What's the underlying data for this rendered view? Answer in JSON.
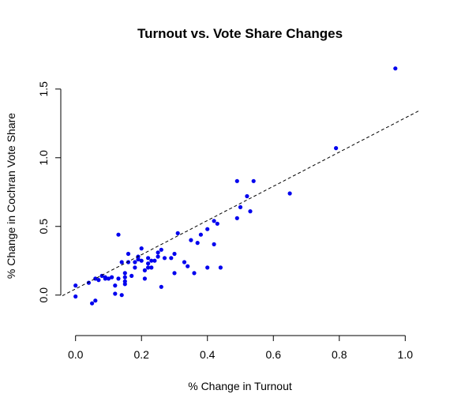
{
  "chart_data": {
    "type": "scatter",
    "title": "Turnout vs. Vote Share Changes",
    "xlabel": "% Change in Turnout",
    "ylabel": "% Change in Cochran Vote Share",
    "xlim": [
      -0.04,
      1.04
    ],
    "ylim": [
      -0.22,
      1.7
    ],
    "x_ticks": [
      "0.0",
      "0.2",
      "0.4",
      "0.6",
      "0.8",
      "1.0"
    ],
    "y_ticks": [
      "0.0",
      "0.5",
      "1.0",
      "1.5"
    ],
    "x_tick_values": [
      0,
      0.2,
      0.4,
      0.6,
      0.8,
      1.0
    ],
    "y_tick_values": [
      0,
      0.5,
      1.0,
      1.5
    ],
    "point_color": "#0000ee",
    "grid": false,
    "legend": "none",
    "trend_line": {
      "style": "dashed",
      "intercept": 0.045,
      "slope": 1.245
    },
    "points": [
      {
        "x": 0.0,
        "y": 0.07
      },
      {
        "x": 0.0,
        "y": -0.01
      },
      {
        "x": 0.04,
        "y": 0.09
      },
      {
        "x": 0.05,
        "y": -0.06
      },
      {
        "x": 0.06,
        "y": -0.04
      },
      {
        "x": 0.06,
        "y": 0.12
      },
      {
        "x": 0.07,
        "y": 0.11
      },
      {
        "x": 0.08,
        "y": 0.14
      },
      {
        "x": 0.09,
        "y": 0.13
      },
      {
        "x": 0.09,
        "y": 0.12
      },
      {
        "x": 0.1,
        "y": 0.12
      },
      {
        "x": 0.11,
        "y": 0.13
      },
      {
        "x": 0.12,
        "y": 0.07
      },
      {
        "x": 0.12,
        "y": 0.01
      },
      {
        "x": 0.13,
        "y": 0.44
      },
      {
        "x": 0.13,
        "y": 0.12
      },
      {
        "x": 0.14,
        "y": 0.0
      },
      {
        "x": 0.14,
        "y": 0.24
      },
      {
        "x": 0.15,
        "y": 0.16
      },
      {
        "x": 0.15,
        "y": 0.13
      },
      {
        "x": 0.15,
        "y": 0.1
      },
      {
        "x": 0.15,
        "y": 0.08
      },
      {
        "x": 0.16,
        "y": 0.3
      },
      {
        "x": 0.16,
        "y": 0.24
      },
      {
        "x": 0.17,
        "y": 0.14
      },
      {
        "x": 0.18,
        "y": 0.24
      },
      {
        "x": 0.18,
        "y": 0.2
      },
      {
        "x": 0.19,
        "y": 0.26
      },
      {
        "x": 0.19,
        "y": 0.28
      },
      {
        "x": 0.2,
        "y": 0.25
      },
      {
        "x": 0.2,
        "y": 0.34
      },
      {
        "x": 0.21,
        "y": 0.12
      },
      {
        "x": 0.21,
        "y": 0.18
      },
      {
        "x": 0.22,
        "y": 0.23
      },
      {
        "x": 0.22,
        "y": 0.27
      },
      {
        "x": 0.22,
        "y": 0.2
      },
      {
        "x": 0.23,
        "y": 0.25
      },
      {
        "x": 0.23,
        "y": 0.2
      },
      {
        "x": 0.24,
        "y": 0.25
      },
      {
        "x": 0.25,
        "y": 0.28
      },
      {
        "x": 0.25,
        "y": 0.31
      },
      {
        "x": 0.26,
        "y": 0.33
      },
      {
        "x": 0.26,
        "y": 0.06
      },
      {
        "x": 0.27,
        "y": 0.27
      },
      {
        "x": 0.29,
        "y": 0.27
      },
      {
        "x": 0.3,
        "y": 0.16
      },
      {
        "x": 0.3,
        "y": 0.3
      },
      {
        "x": 0.31,
        "y": 0.45
      },
      {
        "x": 0.33,
        "y": 0.24
      },
      {
        "x": 0.34,
        "y": 0.21
      },
      {
        "x": 0.35,
        "y": 0.4
      },
      {
        "x": 0.36,
        "y": 0.16
      },
      {
        "x": 0.37,
        "y": 0.38
      },
      {
        "x": 0.38,
        "y": 0.44
      },
      {
        "x": 0.4,
        "y": 0.2
      },
      {
        "x": 0.4,
        "y": 0.48
      },
      {
        "x": 0.42,
        "y": 0.37
      },
      {
        "x": 0.42,
        "y": 0.54
      },
      {
        "x": 0.43,
        "y": 0.52
      },
      {
        "x": 0.44,
        "y": 0.2
      },
      {
        "x": 0.49,
        "y": 0.83
      },
      {
        "x": 0.49,
        "y": 0.56
      },
      {
        "x": 0.5,
        "y": 0.64
      },
      {
        "x": 0.52,
        "y": 0.72
      },
      {
        "x": 0.53,
        "y": 0.61
      },
      {
        "x": 0.54,
        "y": 0.83
      },
      {
        "x": 0.65,
        "y": 0.74
      },
      {
        "x": 0.79,
        "y": 1.07
      },
      {
        "x": 0.97,
        "y": 1.65
      }
    ]
  }
}
